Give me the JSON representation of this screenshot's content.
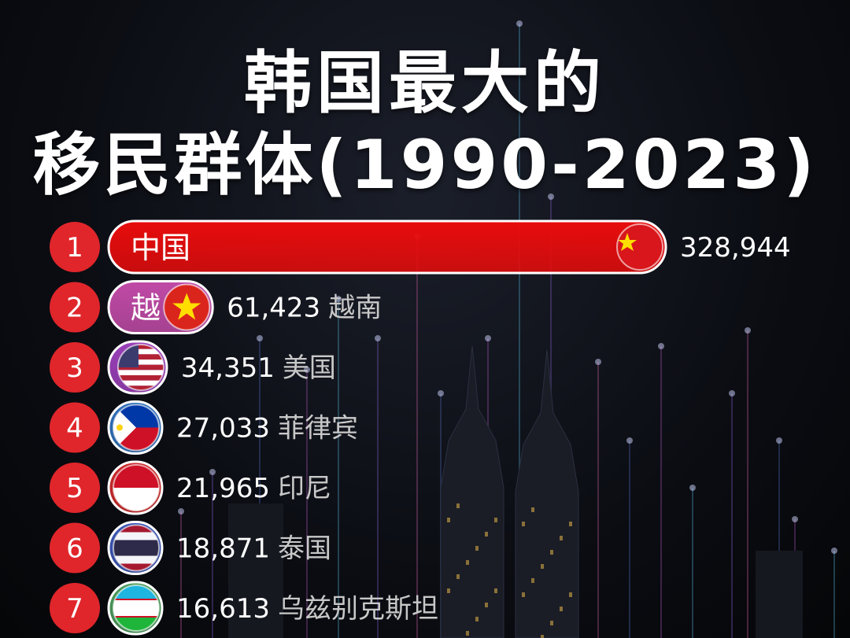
{
  "title_line1": "韩国最大的",
  "title_line2": "移民群体(1990-2023)",
  "chart_data": {
    "type": "bar",
    "orientation": "horizontal",
    "categories": [
      "中国",
      "越南",
      "美国",
      "菲律宾",
      "印尼",
      "泰国",
      "乌兹别克斯坦"
    ],
    "values": [
      328944,
      61423,
      34351,
      27033,
      21965,
      18871,
      16613
    ],
    "value_labels": [
      "328,944",
      "61,423",
      "34,351",
      "27,033",
      "21,965",
      "18,871",
      "16,613"
    ],
    "ranks": [
      "1",
      "2",
      "3",
      "4",
      "5",
      "6",
      "7"
    ],
    "bar_labels": [
      "中国",
      "越",
      "",
      "",
      "",
      "",
      ""
    ],
    "colors": [
      "#e80c0c",
      "#c04aa6",
      "#9a3fb8",
      "#2f6fb8",
      "#cc2a2a",
      "#3b55b2",
      "#4a9a5a"
    ],
    "flags": [
      "china-flag-icon",
      "vietnam-flag-icon",
      "usa-flag-icon",
      "philippines-flag-icon",
      "indonesia-flag-icon",
      "thailand-flag-icon",
      "uzbekistan-flag-icon"
    ],
    "rank_color": "#e0262b"
  }
}
